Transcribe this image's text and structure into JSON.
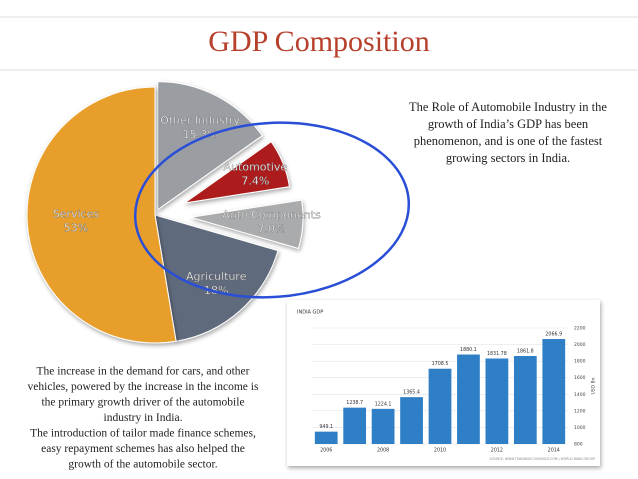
{
  "title": "GDP Composition",
  "right_text": [
    "The Role of Automobile Industry in the",
    "growth of India’s GDP has been",
    "phenomenon, and is one of the fastest",
    "growing sectors in India."
  ],
  "bottom_text": [
    "The increase in the demand for cars, and other",
    "vehicles, powered by the increase in the income is",
    "the primary growth driver of the automobile",
    "industry in India.",
    "The introduction of tailor made finance schemes,",
    "easy repayment schemes has also helped the",
    "growth of the automobile sector."
  ],
  "chart_data": [
    {
      "type": "pie",
      "categories": [
        "Other Industry",
        "Automotive",
        "Auto Components",
        "Agriculture",
        "Services"
      ],
      "values": [
        15.3,
        7.4,
        7.0,
        18,
        53
      ],
      "value_labels": [
        "15.3%",
        "7.4%",
        "7.0%",
        "18%",
        "53%"
      ],
      "colors": [
        "#9a9ea2",
        "#ad1a1a",
        "#a9abad",
        "#5e6a7c",
        "#e89e2c"
      ]
    },
    {
      "type": "bar",
      "title": "INDIA GDP",
      "y_label": "USD Bn",
      "source": "SOURCE: WWW.TRADINGECONOMICS.COM | WORLD BANK GROUP",
      "categories": [
        "2006",
        null,
        "2008",
        null,
        "2010",
        null,
        "2012",
        null,
        "2014"
      ],
      "values": [
        949.1,
        1238.7,
        1224.1,
        1365.4,
        1708.5,
        1880.1,
        1831.78,
        1861.8,
        2066.9
      ],
      "color": "#2f7fc6",
      "ylim": [
        800,
        2200
      ],
      "yticks": [
        800,
        1000,
        1200,
        1400,
        1600,
        1800,
        2000,
        2200
      ],
      "grid": true
    }
  ]
}
